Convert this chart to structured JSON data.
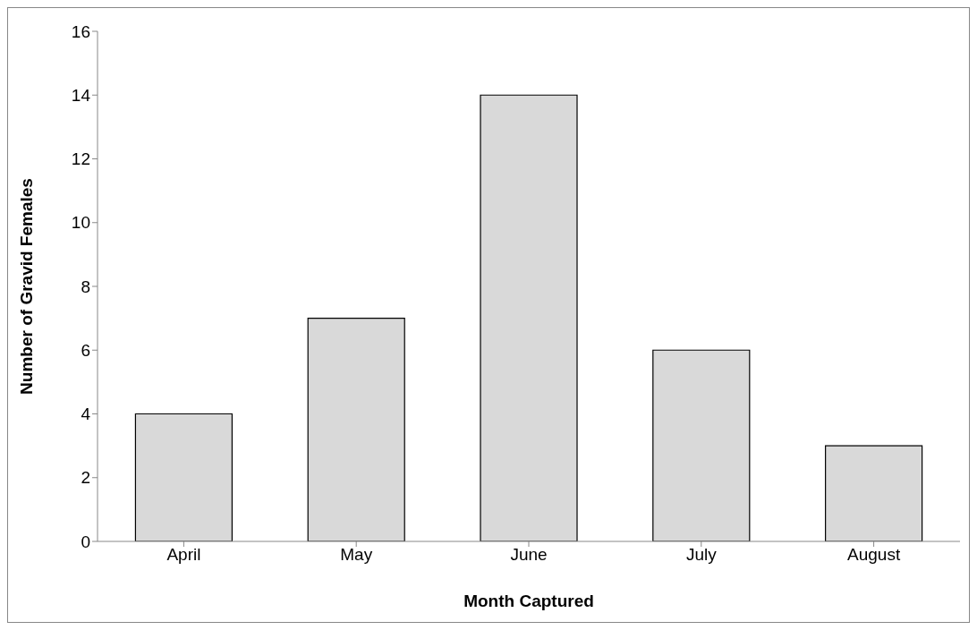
{
  "chart_data": {
    "type": "bar",
    "xlabel": "Month Captured",
    "ylabel": "Number of Gravid Females",
    "categories": [
      "April",
      "May",
      "June",
      "July",
      "August"
    ],
    "values": [
      4,
      7,
      14,
      6,
      3
    ],
    "color": "#d9d9d9",
    "ylim": [
      0,
      16
    ],
    "yticks": [
      0,
      2,
      4,
      6,
      8,
      10,
      12,
      14,
      16
    ],
    "grid": false,
    "legend": false
  }
}
